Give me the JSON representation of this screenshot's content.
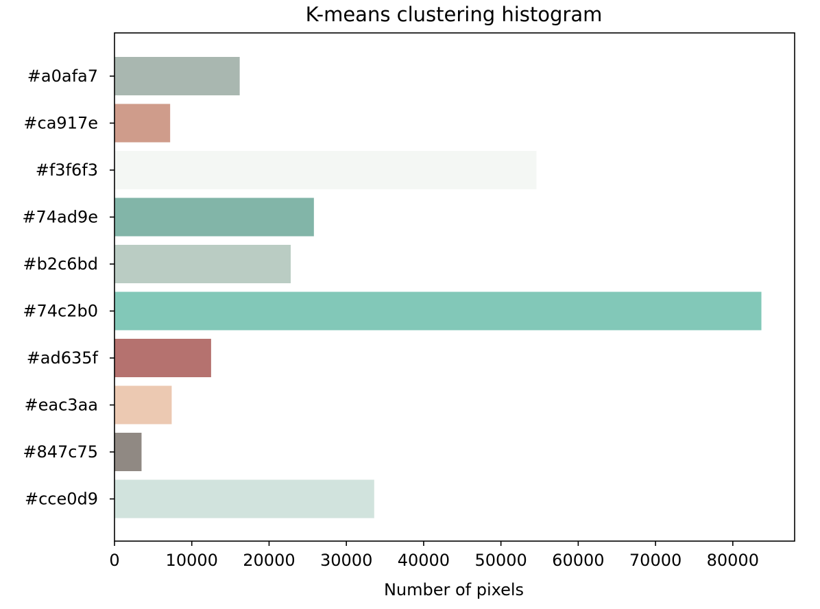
{
  "chart_data": {
    "type": "bar",
    "orientation": "horizontal",
    "title": "K-means clustering histogram",
    "xlabel": "Number of pixels",
    "ylabel": "",
    "categories": [
      "#a0afa7",
      "#ca917e",
      "#f3f6f3",
      "#74ad9e",
      "#b2c6bd",
      "#74c2b0",
      "#ad635f",
      "#eac3aa",
      "#847c75",
      "#cce0d9"
    ],
    "values": [
      16200,
      7200,
      54600,
      25800,
      22800,
      83700,
      12500,
      7400,
      3500,
      33600
    ],
    "bar_colors": [
      "#a0afa7",
      "#ca917e",
      "#f3f6f3",
      "#74ad9e",
      "#b2c6bd",
      "#74c2b0",
      "#ad635f",
      "#eac3aa",
      "#847c75",
      "#cce0d9"
    ],
    "bar_alpha": 0.9,
    "xlim": [
      0,
      88000
    ],
    "xticks": [
      0,
      10000,
      20000,
      30000,
      40000,
      50000,
      60000,
      70000,
      80000
    ],
    "xtick_labels": [
      "0",
      "10000",
      "20000",
      "30000",
      "40000",
      "50000",
      "60000",
      "70000",
      "80000"
    ],
    "grid": false,
    "legend": "none"
  }
}
